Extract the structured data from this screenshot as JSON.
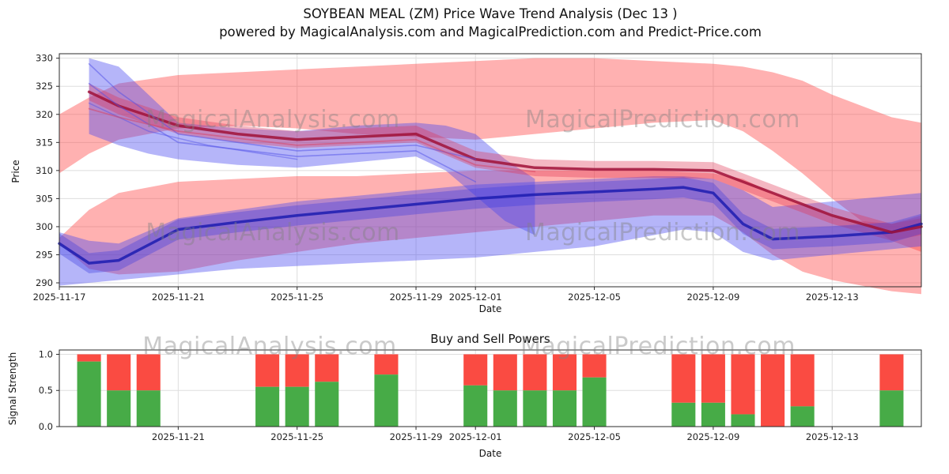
{
  "header": {
    "title": "SOYBEAN MEAL (ZM) Price Wave Trend Analysis (Dec 13 )",
    "subtitle": "powered by MagicalAnalysis.com and MagicalPrediction.com and Predict-Price.com"
  },
  "watermarks": {
    "analysis": "MagicalAnalysis.com",
    "prediction": "MagicalPrediction.com"
  },
  "chart_data": [
    {
      "type": "area",
      "name": "price-wave-trend",
      "xlabel": "Date",
      "ylabel": "Price",
      "x_start_date": "2025-11-17",
      "x_span_days": 29,
      "ylim": [
        289.3,
        330.8
      ],
      "yticks": [
        290,
        295,
        300,
        305,
        310,
        315,
        320,
        325,
        330
      ],
      "xticks": [
        {
          "day": 0,
          "label": "2025-11-17"
        },
        {
          "day": 4,
          "label": "2025-11-21"
        },
        {
          "day": 8,
          "label": "2025-11-25"
        },
        {
          "day": 12,
          "label": "2025-11-29"
        },
        {
          "day": 14,
          "label": "2025-12-01"
        },
        {
          "day": 18,
          "label": "2025-12-05"
        },
        {
          "day": 22,
          "label": "2025-12-09"
        },
        {
          "day": 26,
          "label": "2025-12-13"
        }
      ],
      "grid": true,
      "bands": [
        {
          "name": "middle-red-band",
          "color": "#ff3b3b",
          "opacity": 0.4,
          "days": [
            0,
            1,
            2,
            4,
            6,
            8,
            10,
            12,
            14,
            16,
            18,
            20,
            22,
            23,
            24,
            25,
            26,
            27,
            28,
            29
          ],
          "upper": [
            298,
            303,
            306,
            308,
            308.5,
            309,
            309,
            309.5,
            310,
            310,
            310,
            310,
            309.5,
            308.5,
            306,
            304,
            302,
            301,
            300.5,
            302
          ],
          "lower": [
            297,
            292.5,
            291.5,
            292,
            294,
            295.5,
            297,
            298,
            299,
            300,
            301,
            302,
            302,
            299,
            295,
            292,
            290.5,
            289.5,
            288.5,
            288
          ]
        },
        {
          "name": "upper-red-band",
          "color": "#ff3b3b",
          "opacity": 0.4,
          "days": [
            0,
            1,
            2,
            4,
            6,
            8,
            10,
            12,
            14,
            16,
            18,
            20,
            22,
            23,
            24,
            25,
            26,
            27,
            28,
            29
          ],
          "upper": [
            320,
            323,
            325.5,
            327,
            327.5,
            328,
            328.5,
            329,
            329.5,
            330,
            330,
            329.5,
            329,
            328.5,
            327.5,
            326,
            323.5,
            321.5,
            319.5,
            318.5
          ],
          "lower": [
            309.5,
            313,
            315.5,
            317.5,
            318,
            317.5,
            316.5,
            316,
            315.5,
            316.5,
            317.5,
            318.5,
            319,
            317,
            313.5,
            309.5,
            305,
            301,
            297.5,
            295.5
          ]
        },
        {
          "name": "lower-blue-band",
          "color": "#4646f0",
          "opacity": 0.4,
          "days": [
            0,
            1,
            2,
            4,
            6,
            8,
            10,
            12,
            14,
            16,
            18,
            20,
            21,
            22,
            23,
            24,
            25,
            26,
            27,
            28,
            29
          ],
          "upper": [
            299,
            297.5,
            297,
            301.5,
            303,
            304.5,
            305.5,
            306.5,
            307.5,
            308,
            308.5,
            309,
            309,
            308.5,
            306.5,
            303.5,
            304,
            304.5,
            305,
            305.5,
            306
          ],
          "lower": [
            289.5,
            290,
            290.5,
            291.5,
            292.5,
            293,
            293.5,
            294,
            294.5,
            295.5,
            296.5,
            298.5,
            299.5,
            299,
            295.5,
            294,
            294.5,
            295,
            295.5,
            296,
            296.5
          ]
        },
        {
          "name": "upper-blue-band",
          "color": "#4646f0",
          "opacity": 0.4,
          "days": [
            1,
            2,
            3,
            4,
            6,
            8,
            10,
            12,
            13,
            14,
            15,
            16
          ],
          "upper": [
            330,
            328.5,
            323.5,
            318.5,
            317.5,
            317,
            318,
            318.5,
            318,
            316.5,
            312,
            308.5
          ],
          "lower": [
            316.5,
            314.5,
            313,
            312,
            311,
            310.5,
            311.5,
            312.5,
            310,
            305.5,
            301,
            298.5
          ]
        },
        {
          "name": "inner-red-band",
          "color": "#e03050",
          "opacity": 0.35,
          "days": [
            1,
            2,
            4,
            6,
            8,
            10,
            12,
            14,
            16,
            18,
            20,
            22,
            24,
            26,
            28,
            29
          ],
          "upper": [
            325.5,
            323,
            319.5,
            318,
            317,
            317.5,
            318,
            313.5,
            312,
            311.7,
            311.7,
            311.5,
            307.5,
            303.5,
            300.5,
            301.5
          ],
          "lower": [
            322.5,
            320,
            316.5,
            315,
            314,
            314.5,
            315,
            310.5,
            309,
            308.7,
            308.7,
            308.5,
            304.5,
            300.5,
            297.5,
            298.5
          ]
        },
        {
          "name": "inner-blue-band",
          "color": "#3a3ae0",
          "opacity": 0.35,
          "days": [
            0,
            1,
            2,
            4,
            6,
            8,
            10,
            12,
            14,
            16,
            18,
            20,
            21,
            22,
            23,
            24,
            26,
            28,
            29
          ],
          "upper": [
            298.8,
            295.3,
            295.8,
            301.3,
            302.6,
            303.8,
            304.8,
            305.8,
            306.8,
            307.5,
            308,
            308.5,
            308.8,
            307.8,
            302.3,
            299.6,
            300.1,
            300.8,
            302.3
          ],
          "lower": [
            295.2,
            291.7,
            292.2,
            297.7,
            299,
            300.2,
            301.2,
            302.2,
            303.2,
            303.9,
            304.4,
            304.9,
            305.2,
            304.2,
            298.7,
            296,
            296.5,
            297.2,
            298.7
          ]
        }
      ],
      "lines": [
        {
          "name": "dark-blue-trend",
          "color": "#1c1cb0",
          "opacity": 0.85,
          "width": 3.5,
          "days": [
            0,
            1,
            2,
            4,
            6,
            8,
            10,
            12,
            14,
            16,
            18,
            20,
            21,
            22,
            23,
            24,
            26,
            28,
            29
          ],
          "values": [
            297,
            293.5,
            294,
            299.5,
            300.8,
            302,
            303,
            304,
            305,
            305.7,
            306.2,
            306.7,
            307,
            306,
            300.5,
            297.8,
            298.3,
            299,
            300.5
          ]
        },
        {
          "name": "dark-red-trend",
          "color": "#a01238",
          "opacity": 0.85,
          "width": 3.5,
          "days": [
            1,
            2,
            4,
            6,
            8,
            10,
            12,
            14,
            16,
            18,
            20,
            22,
            24,
            26,
            28,
            29
          ],
          "values": [
            324,
            321.5,
            318,
            316.5,
            315.5,
            316,
            316.5,
            312,
            310.5,
            310.2,
            310.2,
            310,
            306,
            302,
            299,
            300
          ]
        },
        {
          "name": "blue-strand-1",
          "color": "#5050e8",
          "opacity": 0.5,
          "width": 1.6,
          "days": [
            1,
            2,
            4,
            8,
            12,
            14
          ],
          "values": [
            329,
            324,
            316.5,
            313.5,
            314.5,
            312
          ]
        },
        {
          "name": "blue-strand-2",
          "color": "#5050e8",
          "opacity": 0.5,
          "width": 1.6,
          "days": [
            1,
            2,
            4,
            8,
            12,
            14
          ],
          "values": [
            325.5,
            321.5,
            315,
            312.5,
            313.5,
            308
          ]
        },
        {
          "name": "blue-strand-3",
          "color": "#5050e8",
          "opacity": 0.45,
          "width": 1.5,
          "days": [
            1,
            3,
            5,
            8
          ],
          "values": [
            322,
            317,
            314.5,
            312
          ]
        },
        {
          "name": "red-strand-1",
          "color": "#d84060",
          "opacity": 0.5,
          "width": 1.8,
          "days": [
            1,
            2,
            4,
            8,
            12,
            14,
            16
          ],
          "values": [
            321,
            319.5,
            317,
            314.5,
            315.5,
            311,
            309.8
          ]
        }
      ]
    },
    {
      "type": "bar",
      "name": "buy-sell-powers",
      "title": "Buy and Sell Powers",
      "xlabel": "Date",
      "ylabel": "Signal Strength",
      "ylim": [
        0,
        1.06
      ],
      "yticks": [
        0,
        0.5,
        1
      ],
      "xticks": [
        {
          "day": 4,
          "label": "2025-11-21"
        },
        {
          "day": 8,
          "label": "2025-11-25"
        },
        {
          "day": 12,
          "label": "2025-11-29"
        },
        {
          "day": 14,
          "label": "2025-12-01"
        },
        {
          "day": 18,
          "label": "2025-12-05"
        },
        {
          "day": 22,
          "label": "2025-12-09"
        },
        {
          "day": 26,
          "label": "2025-12-13"
        }
      ],
      "colors": {
        "buy": "#47ab47",
        "sell": "#fa4b42"
      },
      "bar_width_days": 0.8,
      "bars": [
        {
          "date": "2025-11-18",
          "day": 1,
          "buy": 0.9,
          "sell": 0.1
        },
        {
          "date": "2025-11-19",
          "day": 2,
          "buy": 0.5,
          "sell": 0.5
        },
        {
          "date": "2025-11-20",
          "day": 3,
          "buy": 0.5,
          "sell": 0.5
        },
        {
          "date": "2025-11-24",
          "day": 7,
          "buy": 0.55,
          "sell": 0.45
        },
        {
          "date": "2025-11-25",
          "day": 8,
          "buy": 0.55,
          "sell": 0.45
        },
        {
          "date": "2025-11-26",
          "day": 9,
          "buy": 0.62,
          "sell": 0.38
        },
        {
          "date": "2025-11-28",
          "day": 11,
          "buy": 0.72,
          "sell": 0.28
        },
        {
          "date": "2025-12-01",
          "day": 14,
          "buy": 0.57,
          "sell": 0.43
        },
        {
          "date": "2025-12-02",
          "day": 15,
          "buy": 0.5,
          "sell": 0.5
        },
        {
          "date": "2025-12-03",
          "day": 16,
          "buy": 0.5,
          "sell": 0.5
        },
        {
          "date": "2025-12-04",
          "day": 17,
          "buy": 0.5,
          "sell": 0.5
        },
        {
          "date": "2025-12-05",
          "day": 18,
          "buy": 0.68,
          "sell": 0.32
        },
        {
          "date": "2025-12-08",
          "day": 21,
          "buy": 0.33,
          "sell": 0.67
        },
        {
          "date": "2025-12-09",
          "day": 22,
          "buy": 0.33,
          "sell": 0.67
        },
        {
          "date": "2025-12-10",
          "day": 23,
          "buy": 0.17,
          "sell": 0.83
        },
        {
          "date": "2025-12-11",
          "day": 24,
          "buy": 0.0,
          "sell": 1.0
        },
        {
          "date": "2025-12-12",
          "day": 25,
          "buy": 0.28,
          "sell": 0.72
        },
        {
          "date": "2025-12-15",
          "day": 28,
          "buy": 0.5,
          "sell": 0.5
        }
      ]
    }
  ]
}
